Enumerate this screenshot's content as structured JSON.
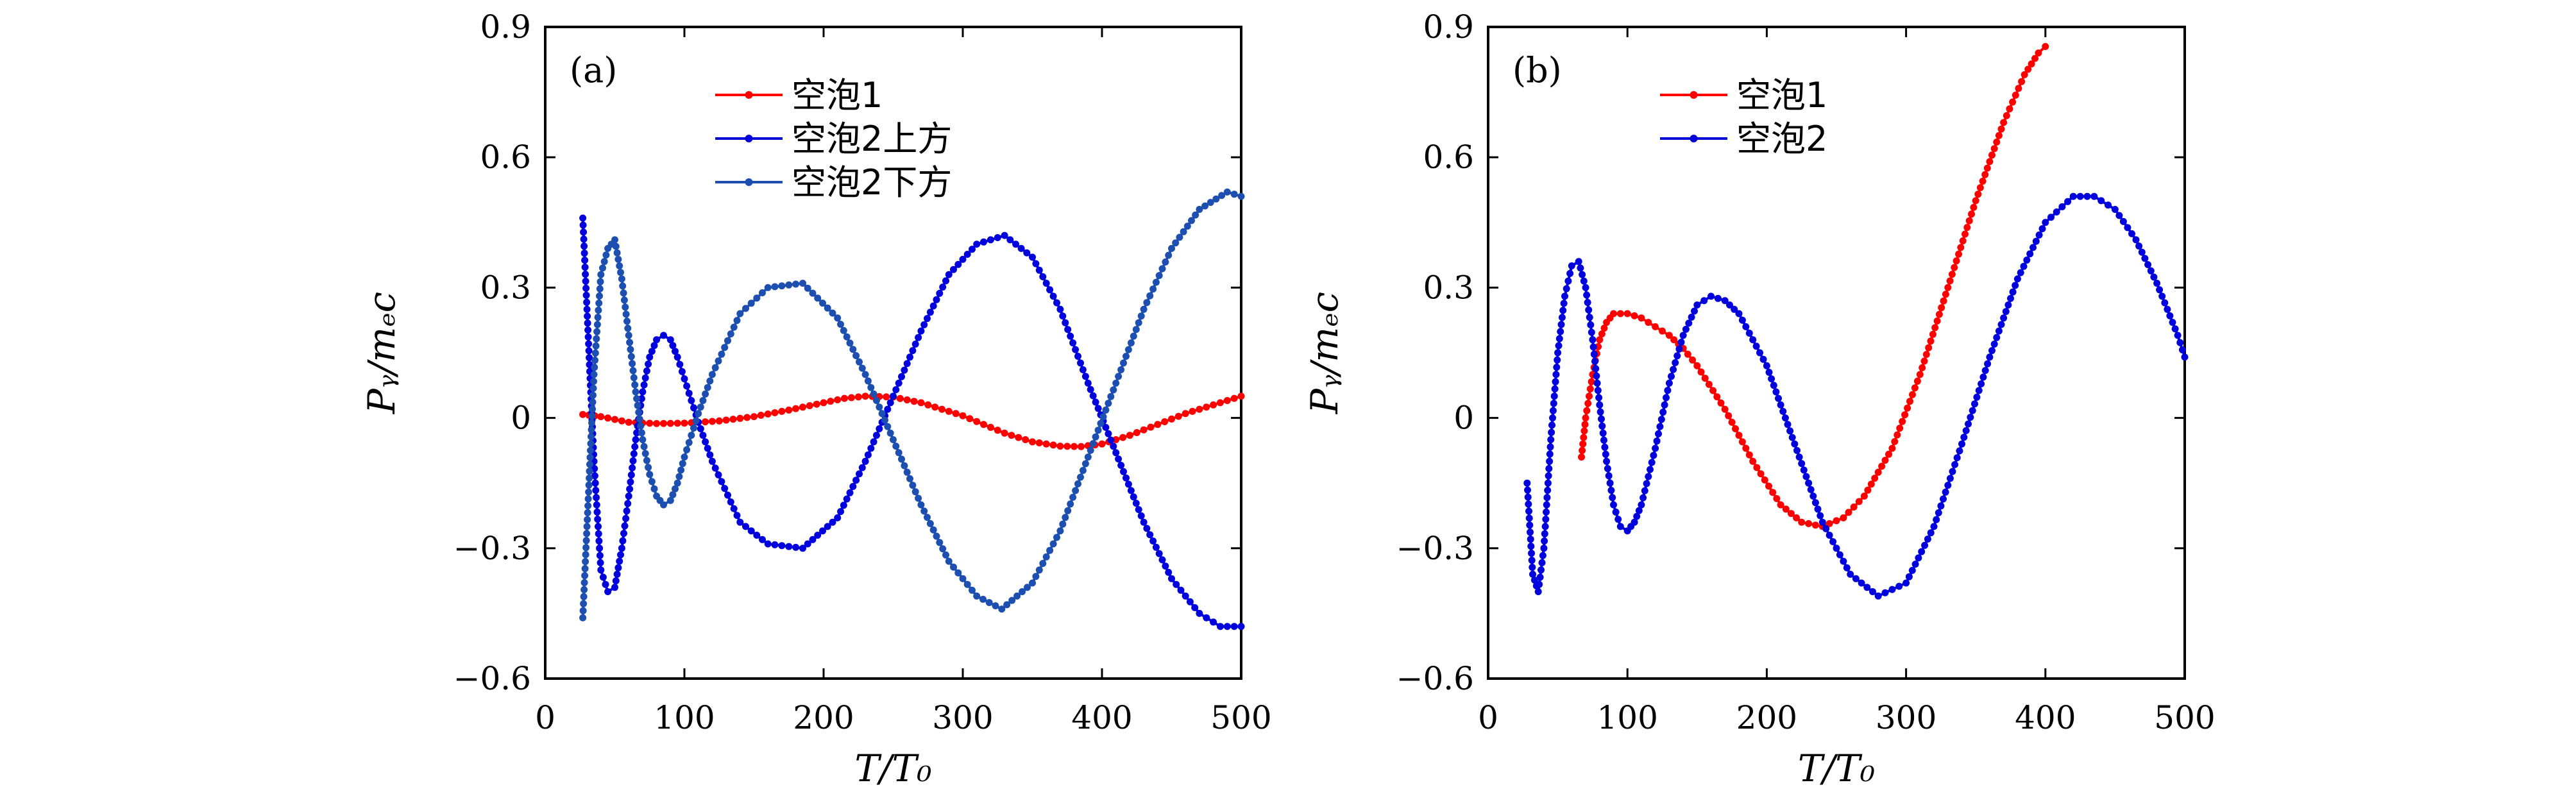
{
  "chart_data": [
    {
      "type": "line",
      "panel_label": "(a)",
      "xlabel": "T/T₀",
      "ylabel": "Pᵧ/mₑc",
      "xlim": [
        0,
        500
      ],
      "ylim": [
        -0.6,
        0.9
      ],
      "xticks": [
        0,
        100,
        200,
        300,
        400,
        500
      ],
      "yticks": [
        -0.6,
        -0.3,
        0,
        0.3,
        0.6,
        0.9
      ],
      "xtick_labels": [
        "0",
        "100",
        "200",
        "300",
        "400",
        "500"
      ],
      "ytick_labels": [
        "−0.6",
        "−0.3",
        "0",
        "0.3",
        "0.6",
        "0.9"
      ],
      "legend_position": "top-center",
      "grid": false,
      "series": [
        {
          "name": "空泡1",
          "color": "#ff0000",
          "x": [
            27,
            40,
            60,
            80,
            100,
            125,
            150,
            175,
            200,
            215,
            230,
            250,
            270,
            300,
            330,
            350,
            370,
            385,
            400,
            420,
            440,
            460,
            480,
            500
          ],
          "y": [
            0.008,
            0.003,
            -0.01,
            -0.013,
            -0.012,
            -0.007,
            0.003,
            0.018,
            0.035,
            0.045,
            0.05,
            0.048,
            0.035,
            0.005,
            -0.035,
            -0.055,
            -0.065,
            -0.066,
            -0.06,
            -0.04,
            -0.015,
            0.01,
            0.03,
            0.05
          ]
        },
        {
          "name": "空泡2上方",
          "color": "#0000dd",
          "x": [
            27,
            30,
            35,
            40,
            45,
            50,
            55,
            60,
            65,
            70,
            75,
            80,
            85,
            90,
            95,
            100,
            110,
            120,
            140,
            160,
            185,
            210,
            230,
            250,
            270,
            290,
            310,
            330,
            350,
            370,
            390,
            410,
            430,
            450,
            470,
            485,
            495,
            500
          ],
          "y": [
            0.46,
            0.25,
            -0.1,
            -0.35,
            -0.4,
            -0.39,
            -0.3,
            -0.18,
            -0.05,
            0.06,
            0.14,
            0.18,
            0.19,
            0.18,
            0.14,
            0.09,
            -0.01,
            -0.1,
            -0.24,
            -0.29,
            -0.3,
            -0.23,
            -0.1,
            0.05,
            0.2,
            0.33,
            0.4,
            0.42,
            0.37,
            0.25,
            0.08,
            -0.08,
            -0.24,
            -0.37,
            -0.45,
            -0.48,
            -0.48,
            -0.48
          ]
        },
        {
          "name": "空泡2下方",
          "color": "#1c4fb0",
          "x": [
            27,
            30,
            35,
            40,
            45,
            50,
            55,
            60,
            65,
            70,
            75,
            80,
            85,
            90,
            95,
            100,
            110,
            120,
            140,
            160,
            185,
            210,
            230,
            250,
            270,
            290,
            310,
            328,
            350,
            370,
            390,
            410,
            430,
            450,
            470,
            490,
            500
          ],
          "y": [
            -0.46,
            -0.25,
            0.1,
            0.33,
            0.39,
            0.41,
            0.32,
            0.19,
            0.06,
            -0.05,
            -0.13,
            -0.18,
            -0.2,
            -0.19,
            -0.15,
            -0.09,
            0.01,
            0.1,
            0.24,
            0.3,
            0.31,
            0.23,
            0.1,
            -0.05,
            -0.2,
            -0.33,
            -0.41,
            -0.44,
            -0.38,
            -0.26,
            -0.09,
            0.08,
            0.25,
            0.39,
            0.48,
            0.52,
            0.51
          ]
        }
      ]
    },
    {
      "type": "line",
      "panel_label": "(b)",
      "xlabel": "T/T₀",
      "ylabel": "Pᵧ/mₑc",
      "xlim": [
        0,
        500
      ],
      "ylim": [
        -0.6,
        0.9
      ],
      "xticks": [
        0,
        100,
        200,
        300,
        400,
        500
      ],
      "yticks": [
        -0.6,
        -0.3,
        0,
        0.3,
        0.6,
        0.9
      ],
      "xtick_labels": [
        "0",
        "100",
        "200",
        "300",
        "400",
        "500"
      ],
      "ytick_labels": [
        "−0.6",
        "−0.3",
        "0",
        "0.3",
        "0.6",
        "0.9"
      ],
      "legend_position": "top-center",
      "grid": false,
      "series": [
        {
          "name": "空泡1",
          "color": "#ff0000",
          "x": [
            67,
            70,
            75,
            80,
            85,
            90,
            100,
            110,
            120,
            130,
            140,
            150,
            170,
            190,
            210,
            225,
            240,
            255,
            270,
            290,
            310,
            330,
            350,
            370,
            385,
            395,
            400
          ],
          "y": [
            -0.09,
            0.0,
            0.1,
            0.18,
            0.22,
            0.24,
            0.24,
            0.23,
            0.21,
            0.19,
            0.16,
            0.12,
            0.02,
            -0.1,
            -0.2,
            -0.24,
            -0.25,
            -0.23,
            -0.18,
            -0.07,
            0.1,
            0.3,
            0.5,
            0.68,
            0.79,
            0.84,
            0.855
          ]
        },
        {
          "name": "空泡2",
          "color": "#0000dd",
          "x": [
            28,
            32,
            36,
            40,
            45,
            50,
            55,
            60,
            65,
            70,
            75,
            80,
            85,
            90,
            95,
            100,
            105,
            110,
            120,
            130,
            140,
            150,
            160,
            170,
            180,
            200,
            220,
            240,
            260,
            280,
            300,
            320,
            340,
            360,
            380,
            400,
            420,
            435,
            450,
            465,
            480,
            495,
            500
          ],
          "y": [
            -0.15,
            -0.36,
            -0.4,
            -0.3,
            -0.05,
            0.15,
            0.28,
            0.35,
            0.36,
            0.3,
            0.18,
            0.03,
            -0.1,
            -0.2,
            -0.25,
            -0.26,
            -0.24,
            -0.2,
            -0.07,
            0.08,
            0.19,
            0.26,
            0.28,
            0.27,
            0.24,
            0.12,
            -0.06,
            -0.24,
            -0.36,
            -0.41,
            -0.38,
            -0.25,
            -0.06,
            0.14,
            0.32,
            0.45,
            0.51,
            0.51,
            0.48,
            0.41,
            0.31,
            0.19,
            0.14
          ]
        }
      ]
    }
  ]
}
